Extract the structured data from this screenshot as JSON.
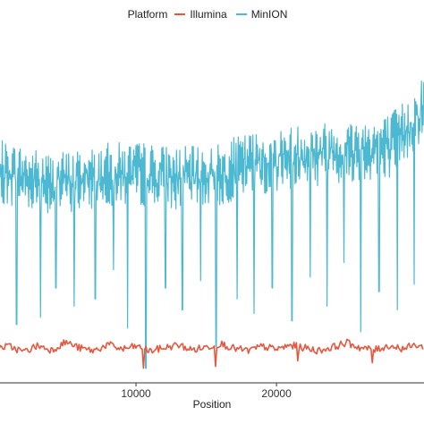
{
  "chart_data": {
    "type": "line",
    "title": "",
    "xlabel": "Position",
    "ylabel": "",
    "legend_title": "Platform",
    "legend_position": "top",
    "xlim": [
      0,
      30500
    ],
    "x_ticks": [
      10000,
      20000
    ],
    "ylim": [
      0,
      1000
    ],
    "grid": false,
    "series": [
      {
        "name": "Illumina",
        "color": "#e4583f",
        "points": [
          [
            0,
            95
          ],
          [
            1000,
            100
          ],
          [
            2000,
            85
          ],
          [
            3000,
            102
          ],
          [
            4000,
            90
          ],
          [
            5000,
            112
          ],
          [
            6000,
            95
          ],
          [
            7000,
            88
          ],
          [
            8000,
            105
          ],
          [
            9000,
            92
          ],
          [
            10000,
            100
          ],
          [
            11000,
            87
          ],
          [
            12000,
            96
          ],
          [
            13000,
            104
          ],
          [
            14000,
            90
          ],
          [
            15000,
            98
          ],
          [
            16000,
            108
          ],
          [
            17000,
            94
          ],
          [
            18000,
            88
          ],
          [
            19000,
            100
          ],
          [
            20000,
            92
          ],
          [
            21000,
            103
          ],
          [
            22000,
            96
          ],
          [
            23000,
            88
          ],
          [
            24000,
            98
          ],
          [
            25000,
            110
          ],
          [
            26000,
            96
          ],
          [
            27000,
            90
          ],
          [
            28000,
            102
          ],
          [
            29000,
            94
          ],
          [
            30000,
            104
          ],
          [
            30500,
            96
          ]
        ],
        "dips": [
          [
            10500,
            40
          ],
          [
            15700,
            45
          ],
          [
            21500,
            60
          ],
          [
            26800,
            55
          ]
        ]
      },
      {
        "name": "MinION",
        "color": "#4cb8d2",
        "points": [
          [
            0,
            580
          ],
          [
            2000,
            565
          ],
          [
            4000,
            545
          ],
          [
            6000,
            555
          ],
          [
            8000,
            570
          ],
          [
            10000,
            575
          ],
          [
            12000,
            565
          ],
          [
            14000,
            560
          ],
          [
            16000,
            570
          ],
          [
            18000,
            600
          ],
          [
            20000,
            610
          ],
          [
            22000,
            625
          ],
          [
            24000,
            630
          ],
          [
            26000,
            640
          ],
          [
            28000,
            650
          ],
          [
            29500,
            700
          ],
          [
            30500,
            760
          ]
        ],
        "dips": [
          [
            1500,
            160
          ],
          [
            3200,
            180
          ],
          [
            4300,
            260
          ],
          [
            5600,
            210
          ],
          [
            7100,
            230
          ],
          [
            8400,
            310
          ],
          [
            9400,
            150
          ],
          [
            10700,
            40
          ],
          [
            12100,
            260
          ],
          [
            13300,
            200
          ],
          [
            14600,
            280
          ],
          [
            15700,
            100
          ],
          [
            17200,
            230
          ],
          [
            18400,
            190
          ],
          [
            19700,
            260
          ],
          [
            21100,
            170
          ],
          [
            22400,
            290
          ],
          [
            23600,
            210
          ],
          [
            24800,
            330
          ],
          [
            26000,
            140
          ],
          [
            27300,
            250
          ],
          [
            28600,
            200
          ],
          [
            29800,
            270
          ]
        ]
      }
    ]
  }
}
